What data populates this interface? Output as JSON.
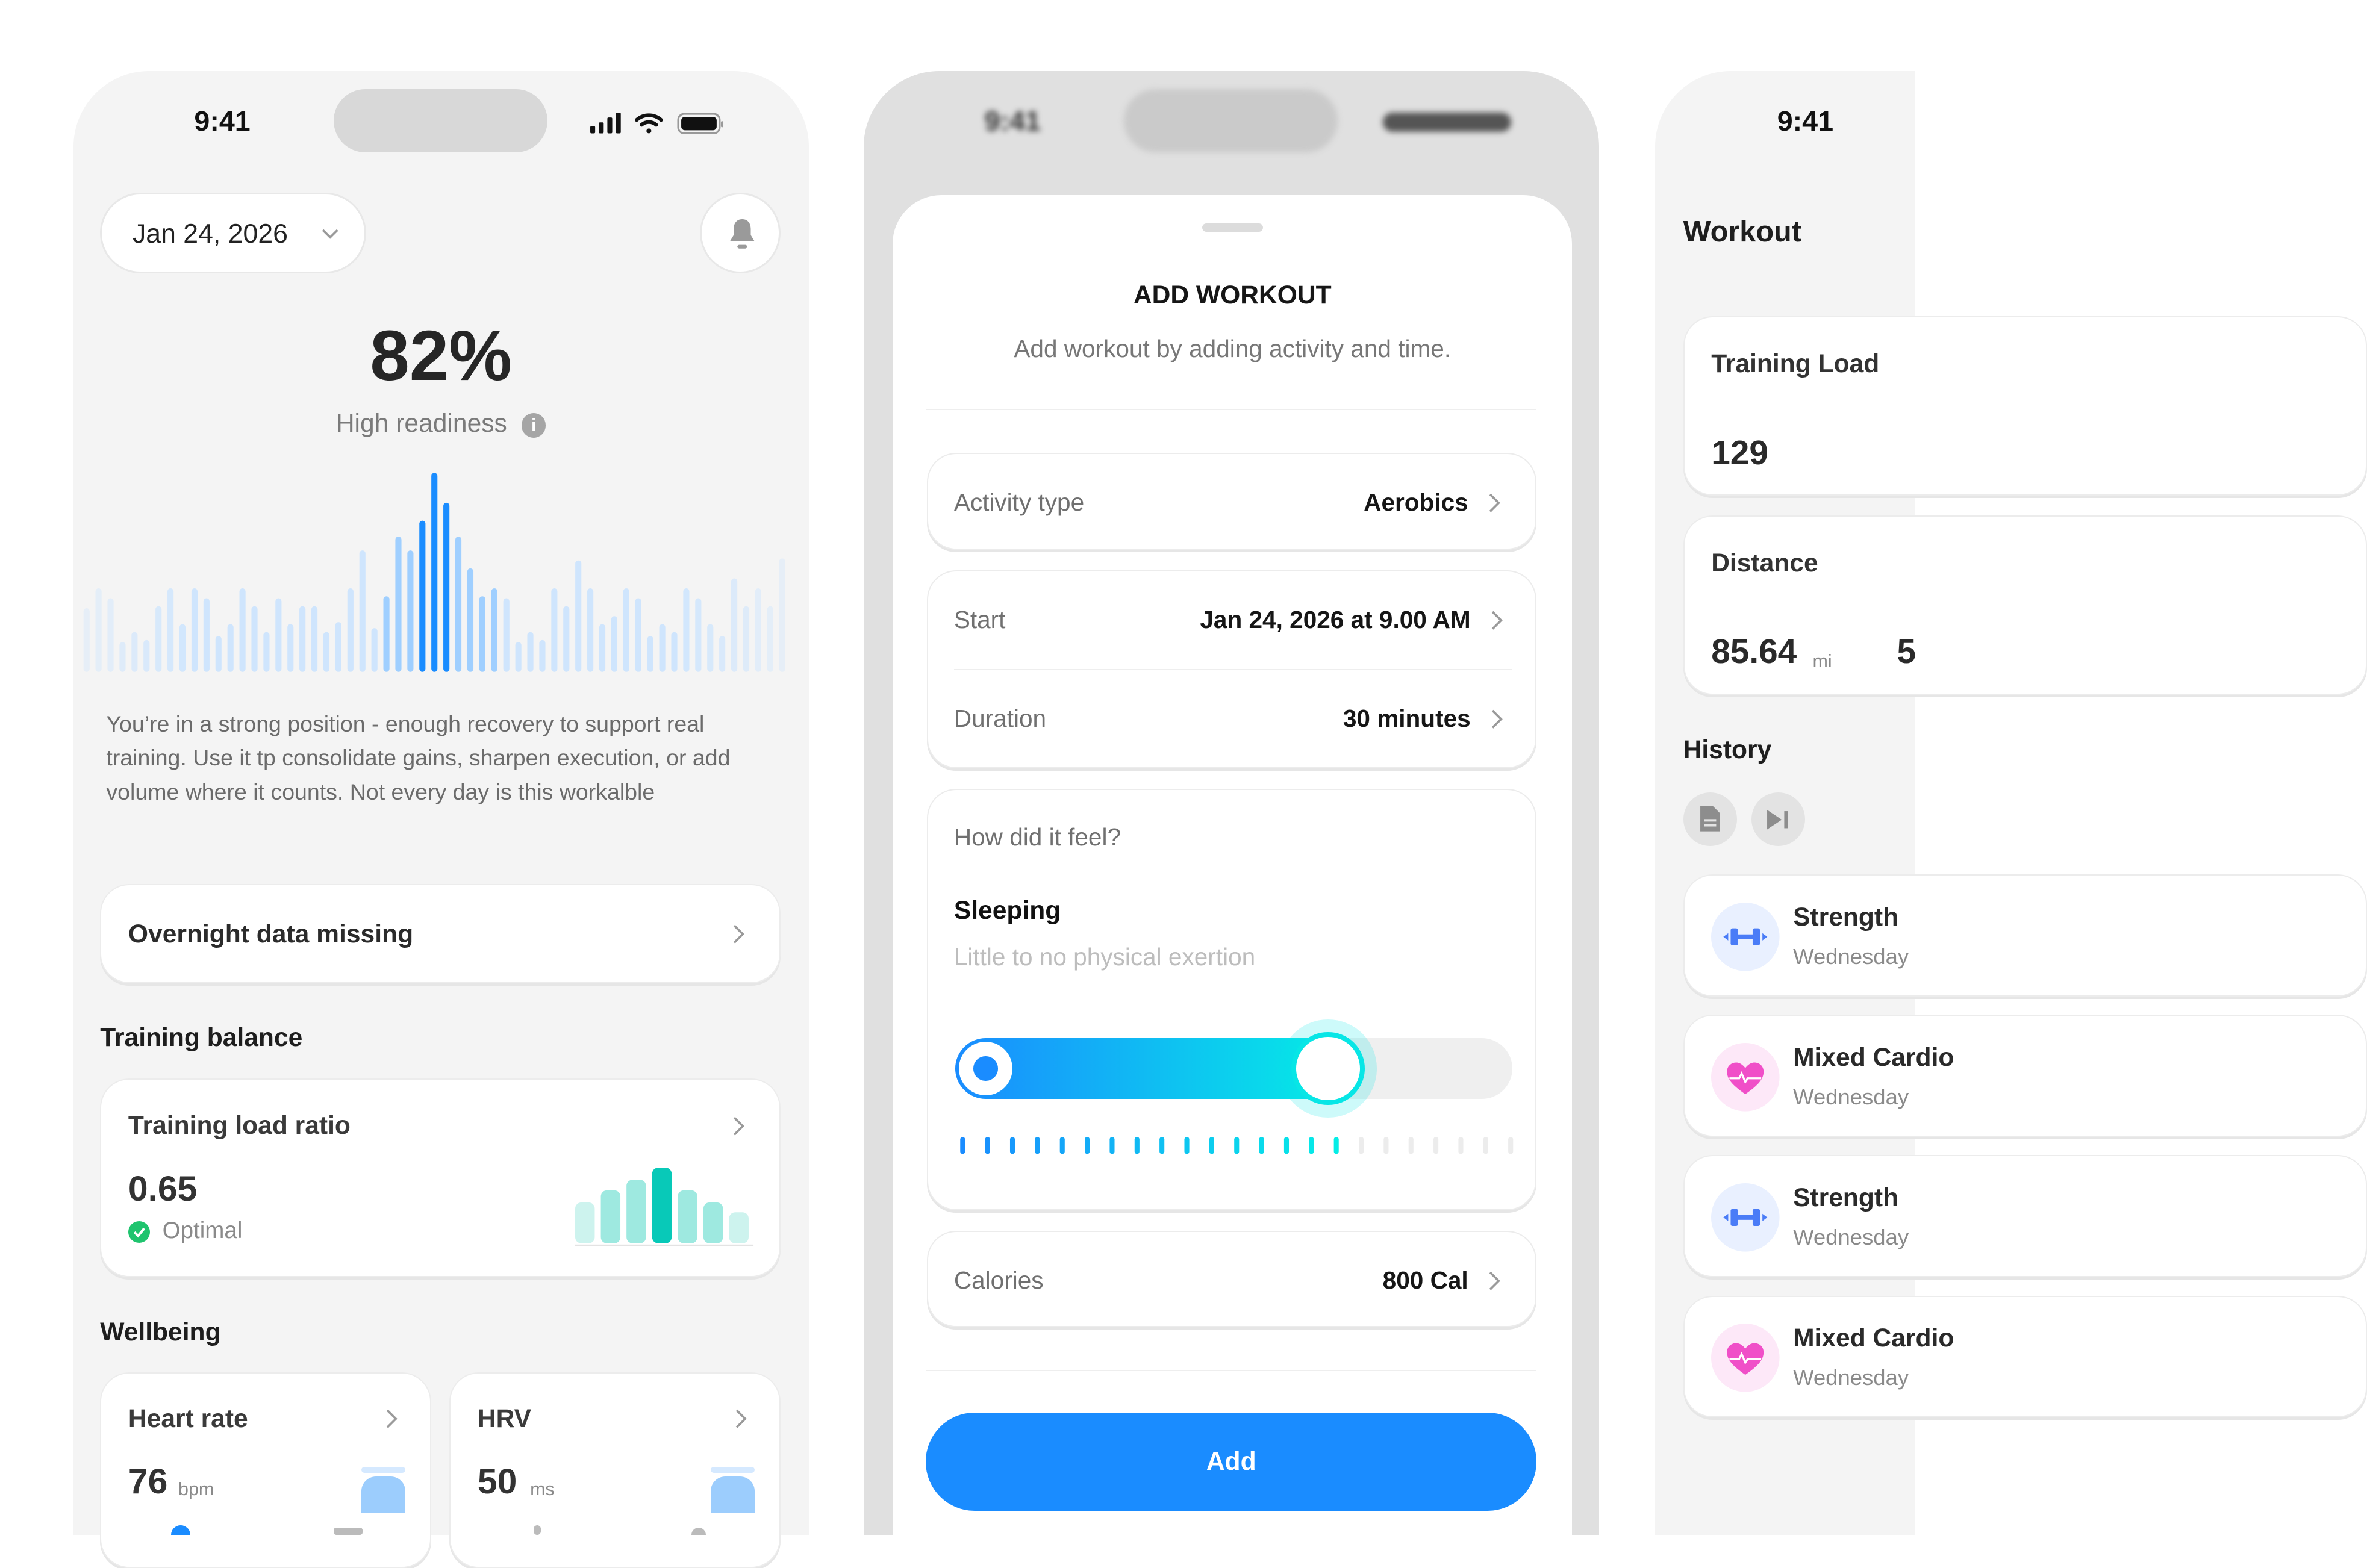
{
  "status": {
    "time": "9:41"
  },
  "home": {
    "date": "Jan 24, 2026",
    "readiness_value": "82%",
    "readiness_label": "High readiness",
    "readiness_wave": [
      32,
      42,
      37,
      15,
      20,
      16,
      33,
      42,
      24,
      42,
      37,
      18,
      24,
      42,
      33,
      20,
      37,
      24,
      33,
      33,
      20,
      25,
      42,
      61,
      22,
      38,
      68,
      61,
      76,
      100,
      85,
      68,
      52,
      38,
      42,
      37,
      15,
      20,
      16,
      42,
      33,
      56,
      42,
      24,
      28,
      42,
      37,
      18,
      24,
      20,
      42,
      37,
      24,
      18,
      47,
      33,
      42,
      33,
      57
    ],
    "description": "You’re in a strong position - enough recovery to support real training. Use it tp consolidate gains, sharpen execution, or add volume where it counts. Not every day is this workalble",
    "overnight": "Overnight data missing",
    "training_balance_heading": "Training balance",
    "training_load_ratio": {
      "title": "Training load ratio",
      "value": "0.65",
      "status": "Optimal",
      "bars": [
        54,
        70,
        84,
        100,
        70,
        54,
        41
      ]
    },
    "wellbeing_heading": "Wellbeing",
    "heart_rate": {
      "title": "Heart rate",
      "value": "76",
      "unit": "bpm"
    },
    "hrv": {
      "title": "HRV",
      "value": "50",
      "unit": "ms"
    }
  },
  "add_workout": {
    "title": "ADD WORKOUT",
    "subtitle": "Add workout by adding activity and time.",
    "activity_label": "Activity type",
    "activity_value": "Aerobics",
    "start_label": "Start",
    "start_value": "Jan 24, 2026 at 9.00 AM",
    "duration_label": "Duration",
    "duration_value": "30 minutes",
    "feel_question": "How did it feel?",
    "feel_level": "Sleeping",
    "feel_description": "Little to no physical exertion",
    "feel_slider_fraction": 0.65,
    "feel_ticks_total": 23,
    "feel_ticks_active": 16,
    "calories_label": "Calories",
    "calories_value": "800 Cal",
    "add_button": "Add"
  },
  "workout": {
    "title": "Workout",
    "training_load_label": "Training Load",
    "training_load_value": "129",
    "distance_label": "Distance",
    "distance_value": "85.64",
    "distance_unit": "mi",
    "distance_second_value": "5",
    "history_heading": "History",
    "history": [
      {
        "title": "Strength",
        "subtitle": "Wednesday",
        "icon": "dumbbell-icon"
      },
      {
        "title": "Mixed Cardio",
        "subtitle": "Wednesday",
        "icon": "heart-pulse-icon"
      },
      {
        "title": "Strength",
        "subtitle": "Wednesday",
        "icon": "dumbbell-icon"
      },
      {
        "title": "Mixed Cardio",
        "subtitle": "Wednesday",
        "icon": "heart-pulse-icon"
      }
    ]
  },
  "colors": {
    "accent": "#1a8cff",
    "teal": "#08c9b8",
    "success": "#1fc46e",
    "pink": "#f04fc8",
    "dumbbell": "#4a7cf7"
  }
}
